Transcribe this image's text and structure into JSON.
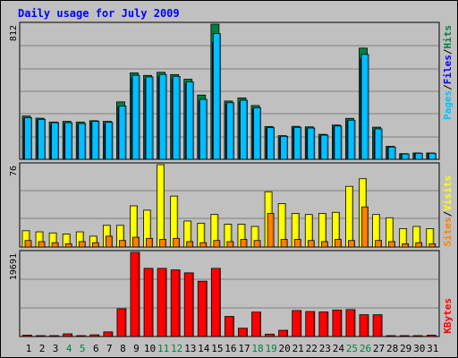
{
  "chart_data": [
    {
      "type": "bar",
      "title": "Daily usage for July 2009",
      "categories": [
        "1",
        "2",
        "3",
        "4",
        "5",
        "6",
        "7",
        "8",
        "9",
        "10",
        "11",
        "12",
        "13",
        "14",
        "15",
        "16",
        "17",
        "18",
        "19",
        "20",
        "21",
        "22",
        "23",
        "24",
        "25",
        "26",
        "27",
        "28",
        "29",
        "30",
        "31"
      ],
      "weekend_days": [
        "4",
        "5",
        "11",
        "12",
        "18",
        "19",
        "25",
        "26"
      ],
      "ymax_label": "812",
      "ylim": [
        0,
        812
      ],
      "legend": [
        "Pages",
        "Files",
        "Hits"
      ],
      "legend_colors": [
        "#00c0ff",
        "#0000ff",
        "#008040"
      ],
      "series": [
        {
          "name": "Hits",
          "values": [
            260,
            247,
            224,
            228,
            224,
            232,
            228,
            345,
            519,
            504,
            523,
            509,
            481,
            386,
            812,
            350,
            369,
            323,
            197,
            142,
            198,
            195,
            150,
            206,
            246,
            668,
            193,
            78,
            34,
            38,
            38
          ]
        },
        {
          "name": "Files",
          "values": [
            245,
            233,
            208,
            212,
            207,
            220,
            212,
            312,
            487,
            483,
            496,
            485,
            454,
            351,
            702,
            330,
            344,
            302,
            184,
            133,
            186,
            180,
            139,
            193,
            229,
            604,
            177,
            71,
            30,
            35,
            34
          ]
        },
        {
          "name": "Pages",
          "values": [
            250,
            240,
            220,
            220,
            215,
            228,
            222,
            320,
            505,
            495,
            510,
            498,
            465,
            360,
            755,
            340,
            355,
            310,
            190,
            138,
            192,
            188,
            145,
            200,
            235,
            630,
            183,
            74,
            32,
            36,
            36
          ]
        }
      ]
    },
    {
      "type": "bar",
      "ymax_label": "76",
      "ylim": [
        0,
        76
      ],
      "legend": [
        "Sites",
        "Visits"
      ],
      "legend_colors": [
        "#ff8000",
        "#ffff00"
      ],
      "series": [
        {
          "name": "Visits",
          "values": [
            15,
            14,
            13,
            12,
            14,
            10,
            20,
            20,
            38,
            34,
            76,
            47,
            24,
            22,
            30,
            21,
            21,
            19,
            51,
            40,
            31,
            30,
            31,
            32,
            56,
            63,
            30,
            27,
            17,
            19,
            17
          ]
        },
        {
          "name": "Sites",
          "values": [
            6,
            5,
            4,
            3,
            5,
            4,
            10,
            6,
            9,
            8,
            7,
            8,
            5,
            4,
            6,
            5,
            7,
            6,
            31,
            7,
            7,
            6,
            5,
            7,
            6,
            37,
            6,
            5,
            3,
            4,
            3
          ]
        }
      ]
    },
    {
      "type": "bar",
      "ymax_label": "19691",
      "ylim": [
        0,
        19691
      ],
      "legend": [
        "KBytes"
      ],
      "legend_colors": [
        "#ff0000"
      ],
      "series": [
        {
          "name": "KBytes",
          "values": [
            330,
            120,
            160,
            620,
            200,
            400,
            1080,
            6500,
            19691,
            15950,
            15950,
            15600,
            14900,
            12950,
            15950,
            4700,
            1950,
            5720,
            560,
            1460,
            6080,
            5850,
            5750,
            6200,
            6300,
            5100,
            5100,
            180,
            160,
            100,
            300
          ]
        }
      ]
    }
  ]
}
